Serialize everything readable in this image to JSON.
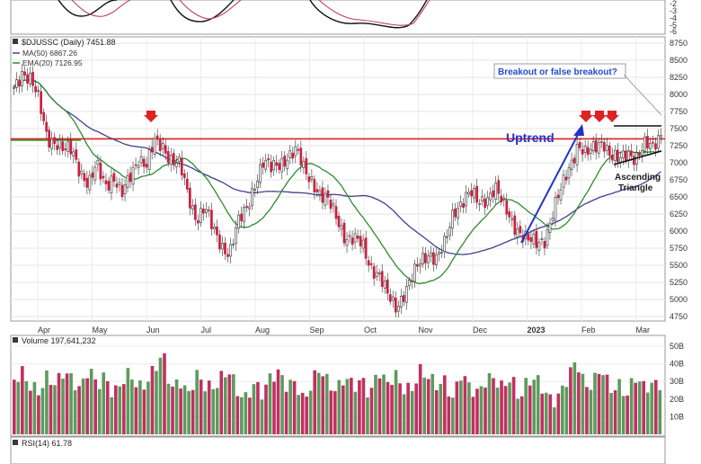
{
  "chart_data": {
    "type": "candlestick",
    "symbol_line": "$DJUSSC (Daily) 7451.88",
    "legend": {
      "ma50": "MA(50) 6867.26",
      "ema20": "EMA(20) 7126.95"
    },
    "price_axis_ticks": [
      "8750",
      "8500",
      "8250",
      "8000",
      "7750",
      "7500",
      "7250",
      "7000",
      "6750",
      "6500",
      "6250",
      "6000",
      "5750",
      "5500",
      "5250",
      "5000",
      "4750"
    ],
    "rsi_top_axis_ticks": [
      "-2",
      "-3",
      "-4",
      "-5",
      "-6"
    ],
    "volume_axis_ticks": [
      "50B",
      "40B",
      "30B",
      "20B",
      "10B"
    ],
    "months": [
      "Apr",
      "May",
      "Jun",
      "Jul",
      "Aug",
      "Sep",
      "Oct",
      "Nov",
      "Dec",
      "2023",
      "Feb",
      "Mar"
    ],
    "volume_label": "Volume 197,641,232",
    "rsi_label": "RSI(14) 61.78",
    "annotations": {
      "breakout": "Breakout or false breakout?",
      "uptrend": "Uptrend",
      "triangle_line1": "Ascending",
      "triangle_line2": "Triangle"
    },
    "resistance_level": 7350,
    "support_level": 7330,
    "close_path": [
      8100,
      8350,
      8200,
      7900,
      7400,
      7300,
      7150,
      7200,
      6900,
      6650,
      6950,
      6700,
      6800,
      6500,
      6800,
      7100,
      6950,
      7300,
      7250,
      7050,
      6950,
      6500,
      6200,
      6350,
      6000,
      5800,
      5700,
      6100,
      6300,
      6700,
      7000,
      6900,
      7000,
      7100,
      7150,
      6900,
      6750,
      6500,
      6400,
      6200,
      5900,
      5850,
      5800,
      5500,
      5350,
      5050,
      4900,
      5100,
      5300,
      5550,
      5700,
      5600,
      5800,
      6300,
      6450,
      6550,
      6400,
      6500,
      6650,
      6350,
      6150,
      6000,
      5850,
      5800,
      5900,
      6300,
      6600,
      6950,
      7300,
      7100,
      7200,
      7350,
      7100,
      7000,
      7150,
      7100,
      7250,
      7200,
      7450
    ],
    "volume_values": [
      31,
      35,
      27,
      24,
      33,
      28,
      36,
      31,
      25,
      38,
      28,
      33,
      22,
      30,
      35,
      26,
      29,
      38,
      46,
      25,
      31,
      22,
      34,
      28,
      26,
      32,
      36,
      24,
      20,
      29,
      23,
      33,
      35,
      27,
      30,
      18,
      30,
      38,
      28,
      25,
      33,
      27,
      31,
      22,
      37,
      28,
      34,
      26,
      25,
      36,
      33,
      28,
      30,
      20,
      35,
      27,
      23,
      31,
      32,
      26,
      33,
      20,
      30,
      32,
      25,
      18,
      23,
      34,
      42,
      26,
      30,
      38,
      25,
      28,
      22,
      33,
      27,
      28,
      29
    ]
  },
  "colors": {
    "up": "#3b8a3b",
    "down": "#cc1f3f",
    "vol_up": "#5e9a5e",
    "vol_down": "#c03060",
    "ma50": "#404090",
    "ema20": "#2e8b2e",
    "resistance": "#dd2222",
    "support": "#28a028",
    "arrow": "#dd2222",
    "uptrend": "#2233cc",
    "triangle": "#111111",
    "callout": "#1f4bd0"
  }
}
